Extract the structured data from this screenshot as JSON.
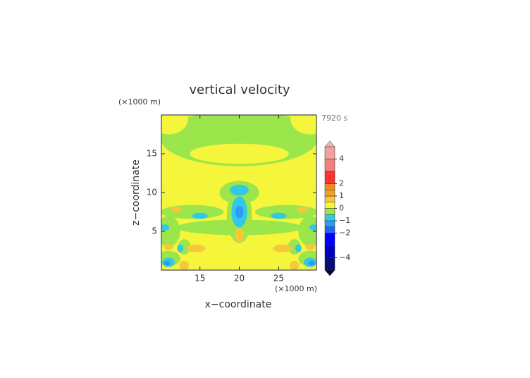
{
  "chart_data": {
    "type": "contour",
    "title": "vertical velocity",
    "x_label": "x−coordinate",
    "y_label": "z−coordinate",
    "x_unit": "(×1000 m)",
    "y_unit": "(×1000 m)",
    "time_label": "7920 s",
    "xlim": [
      10.1,
      29.8
    ],
    "ylim": [
      0,
      20
    ],
    "xticks": [
      15,
      20,
      25
    ],
    "yticks": [
      5,
      10,
      15
    ],
    "background_value": 0.25,
    "colorbar": {
      "lim": [
        -5,
        5
      ],
      "ticks": [
        {
          "value": -4,
          "label": "−4"
        },
        {
          "value": -2,
          "label": "−2"
        },
        {
          "value": -1,
          "label": "−1"
        },
        0,
        1,
        2,
        4
      ],
      "levels": [
        -5,
        -4,
        -3,
        -2,
        -1.5,
        -1,
        -0.5,
        0,
        0.5,
        1,
        1.5,
        2,
        3,
        4,
        5
      ],
      "colors": [
        "#0a0a78",
        "#0000c0",
        "#0000ff",
        "#1e64ff",
        "#3296ff",
        "#32c8e6",
        "#9be64b",
        "#f5f53c",
        "#f5c83c",
        "#f0a028",
        "#f08c1e",
        "#ff3232",
        "#f08080",
        "#f5a0a0"
      ],
      "over_color": "#f5b4b4",
      "under_color": "#000040"
    },
    "regions": [
      {
        "x": 20,
        "y": 17,
        "rx": 10,
        "ry": 3.6,
        "value": -0.25
      },
      {
        "x": 11,
        "y": 19.5,
        "rx": 2.5,
        "ry": 2,
        "value": 0.25
      },
      {
        "x": 29,
        "y": 19.5,
        "rx": 2.5,
        "ry": 2,
        "value": 0.25
      },
      {
        "x": 20,
        "y": 15,
        "rx": 6.3,
        "ry": 1.3,
        "value": 0.25
      },
      {
        "x": 20,
        "y": 10,
        "rx": 2.5,
        "ry": 1.5,
        "value": -0.25
      },
      {
        "x": 14,
        "y": 7.5,
        "rx": 4,
        "ry": 0.9,
        "value": -0.25
      },
      {
        "x": 26,
        "y": 7.5,
        "rx": 4,
        "ry": 0.9,
        "value": -0.25
      },
      {
        "x": 20,
        "y": 5.5,
        "rx": 8,
        "ry": 1,
        "value": -0.25
      },
      {
        "x": 11,
        "y": 5,
        "rx": 1.5,
        "ry": 2,
        "value": -0.25
      },
      {
        "x": 29,
        "y": 5,
        "rx": 1.5,
        "ry": 2,
        "value": -0.25
      },
      {
        "x": 20,
        "y": 7,
        "rx": 1.6,
        "ry": 3.5,
        "value": -0.25
      },
      {
        "x": 11,
        "y": 1.5,
        "rx": 1.5,
        "ry": 1,
        "value": -0.25
      },
      {
        "x": 29,
        "y": 1.5,
        "rx": 1.5,
        "ry": 1,
        "value": -0.25
      },
      {
        "x": 13,
        "y": 3,
        "rx": 0.8,
        "ry": 1,
        "value": -0.25
      },
      {
        "x": 27,
        "y": 3,
        "rx": 0.8,
        "ry": 1,
        "value": -0.25
      },
      {
        "x": 20,
        "y": 10.3,
        "rx": 1.2,
        "ry": 0.7,
        "value": -0.75
      },
      {
        "x": 20,
        "y": 7.5,
        "rx": 1,
        "ry": 2,
        "value": -0.75
      },
      {
        "x": 15,
        "y": 7,
        "rx": 1,
        "ry": 0.4,
        "value": -0.75
      },
      {
        "x": 25,
        "y": 7,
        "rx": 1,
        "ry": 0.4,
        "value": -0.75
      },
      {
        "x": 10.5,
        "y": 5.5,
        "rx": 0.6,
        "ry": 0.4,
        "value": -0.75
      },
      {
        "x": 29.5,
        "y": 5.5,
        "rx": 0.6,
        "ry": 0.4,
        "value": -0.75
      },
      {
        "x": 11,
        "y": 1,
        "rx": 0.8,
        "ry": 0.6,
        "value": -0.75
      },
      {
        "x": 29,
        "y": 1,
        "rx": 0.8,
        "ry": 0.6,
        "value": -0.75
      },
      {
        "x": 12.5,
        "y": 2.8,
        "rx": 0.4,
        "ry": 0.5,
        "value": -0.75
      },
      {
        "x": 27.5,
        "y": 2.8,
        "rx": 0.4,
        "ry": 0.5,
        "value": -0.75
      },
      {
        "x": 20,
        "y": 7.5,
        "rx": 0.5,
        "ry": 0.8,
        "value": -1.25
      },
      {
        "x": 10.8,
        "y": 0.9,
        "rx": 0.4,
        "ry": 0.3,
        "value": -1.25
      },
      {
        "x": 29.2,
        "y": 0.9,
        "rx": 0.4,
        "ry": 0.3,
        "value": -1.25
      },
      {
        "x": 12,
        "y": 7.8,
        "rx": 0.7,
        "ry": 0.4,
        "value": 0.75
      },
      {
        "x": 28,
        "y": 7.8,
        "rx": 0.7,
        "ry": 0.4,
        "value": 0.75
      },
      {
        "x": 20,
        "y": 4.5,
        "rx": 0.6,
        "ry": 0.9,
        "value": 0.75
      },
      {
        "x": 14.5,
        "y": 2.8,
        "rx": 1.2,
        "ry": 0.5,
        "value": 0.75
      },
      {
        "x": 25.5,
        "y": 2.8,
        "rx": 1.2,
        "ry": 0.5,
        "value": 0.75
      },
      {
        "x": 13,
        "y": 0.6,
        "rx": 0.6,
        "ry": 0.6,
        "value": 0.75
      },
      {
        "x": 27,
        "y": 0.6,
        "rx": 0.6,
        "ry": 0.6,
        "value": 0.75
      },
      {
        "x": 11,
        "y": 3,
        "rx": 0.6,
        "ry": 0.4,
        "value": 0.75
      },
      {
        "x": 29,
        "y": 3,
        "rx": 0.6,
        "ry": 0.4,
        "value": 0.75
      }
    ]
  }
}
